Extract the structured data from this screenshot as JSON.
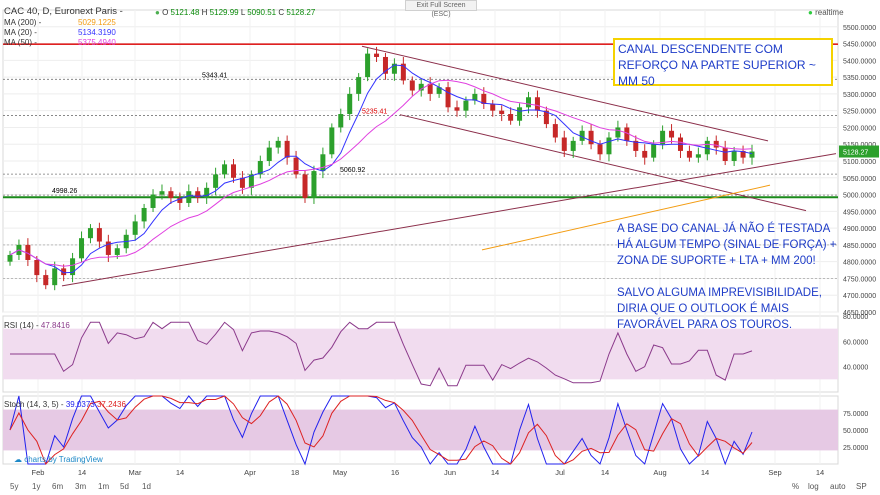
{
  "header": {
    "symbol": "CAC 40, D, Euronext Paris -",
    "ohlc": {
      "o": "5121.48",
      "h": "5129.99",
      "l": "5090.51",
      "c": "5128.27"
    },
    "ma200_label": "MA (200) -",
    "ma200_value": "5029.1225",
    "ma20_label": "MA (20) -",
    "ma20_value": "5134.3190",
    "ma50_label": "MA (50) -",
    "ma50_value": "5375.4940",
    "realtime": "realtime",
    "exit_fullscreen": "Exit Full Screen (ESC)"
  },
  "annotations": {
    "box_text": "CANAL DESCENDENTE COM REFORÇO NA PARTE SUPERIOR ~ MM 50",
    "text1": "A BASE DO CANAL JÁ NÃO É TESTADA HÁ ALGUM TEMPO (SINAL DE FORÇA) + ZONA DE SUPORTE + LTA + MM 200!",
    "text2": "SALVO ALGUMA IMPREVISIBILIDADE, DIRIA QUE O OUTLOOK É MAIS FAVORÁVEL PARA OS TOUROS."
  },
  "levels": [
    {
      "label": "5343.41",
      "value": 5343.41
    },
    {
      "label": "5235.41",
      "value": 5235.41
    },
    {
      "label": "5060.92",
      "value": 5060.92
    },
    {
      "label": "4998.26",
      "value": 4998.26
    }
  ],
  "indicators": {
    "rsi_label": "RSI (14) -",
    "rsi_value": "47.8416",
    "stoch_label": "Stoch (14, 3, 5) -",
    "stoch_k": "39.0373",
    "stoch_d": "37.2436"
  },
  "footer": {
    "brand": "charts by TradingView",
    "timeframes": [
      "5y",
      "1y",
      "6m",
      "3m",
      "1m",
      "5d",
      "1d"
    ],
    "right_buttons": [
      "%",
      "log",
      "auto",
      "SP"
    ]
  },
  "chart_data": {
    "type": "candlestick",
    "symbol": "CAC 40",
    "price_axis": {
      "ylim": [
        4650,
        5550
      ],
      "ticks": [
        4650,
        4700,
        4750,
        4800,
        4850,
        4900,
        4950,
        5000,
        5050,
        5100,
        5150,
        5200,
        5250,
        5300,
        5350,
        5400,
        5450,
        5500
      ]
    },
    "last_price": "5128.27",
    "x_ticks": [
      "Feb",
      "14",
      "Mar",
      "14",
      "Apr",
      "18",
      "May",
      "16",
      "Jun",
      "14",
      "Jul",
      "14",
      "Aug",
      "14",
      "Sep",
      "14"
    ],
    "closes": [
      4820,
      4850,
      4805,
      4760,
      4730,
      4780,
      4760,
      4810,
      4870,
      4900,
      4860,
      4820,
      4840,
      4880,
      4920,
      4960,
      5000,
      5010,
      4990,
      4975,
      5010,
      4990,
      5020,
      5060,
      5090,
      5050,
      5020,
      5060,
      5100,
      5140,
      5160,
      5110,
      5060,
      4990,
      5070,
      5120,
      5200,
      5240,
      5300,
      5350,
      5420,
      5410,
      5360,
      5390,
      5340,
      5310,
      5330,
      5300,
      5320,
      5260,
      5250,
      5280,
      5300,
      5270,
      5250,
      5240,
      5220,
      5260,
      5290,
      5250,
      5210,
      5170,
      5130,
      5160,
      5190,
      5150,
      5120,
      5170,
      5200,
      5160,
      5130,
      5110,
      5150,
      5190,
      5170,
      5130,
      5110,
      5120,
      5160,
      5140,
      5100,
      5130,
      5110,
      5128.27
    ],
    "rsi_axis": {
      "ylim": [
        20,
        80
      ],
      "ticks": [
        40,
        60,
        80
      ]
    },
    "stoch_axis": {
      "ylim": [
        0,
        100
      ],
      "ticks": [
        25,
        50,
        75
      ]
    }
  }
}
